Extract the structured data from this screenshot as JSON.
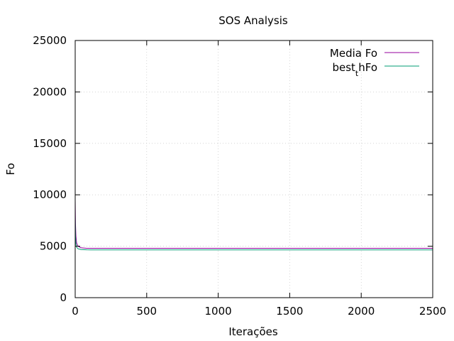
{
  "chart_data": {
    "type": "line",
    "title": "SOS Analysis",
    "xlabel": "Iterações",
    "ylabel": "Fo",
    "xlim": [
      0,
      2500
    ],
    "ylim": [
      0,
      25000
    ],
    "xticks": [
      0,
      500,
      1000,
      1500,
      2000,
      2500
    ],
    "yticks": [
      0,
      5000,
      10000,
      15000,
      20000,
      25000
    ],
    "grid": true,
    "legend_position": "top-right",
    "series": [
      {
        "name": "Media Fo",
        "color": "#94009e",
        "x": [
          0,
          2,
          5,
          10,
          20,
          40,
          80,
          200,
          1000,
          2500
        ],
        "y": [
          9500,
          7200,
          6000,
          5300,
          5000,
          4850,
          4800,
          4800,
          4800,
          4800
        ]
      },
      {
        "name": "best_thFo",
        "legend_main": "best",
        "legend_sub": "t",
        "legend_tail": "hFo",
        "color": "#009e73",
        "x": [
          0,
          2,
          5,
          10,
          20,
          40,
          80,
          200,
          1000,
          2500
        ],
        "y": [
          8000,
          6000,
          5200,
          4900,
          4750,
          4680,
          4650,
          4640,
          4640,
          4640
        ]
      }
    ]
  }
}
